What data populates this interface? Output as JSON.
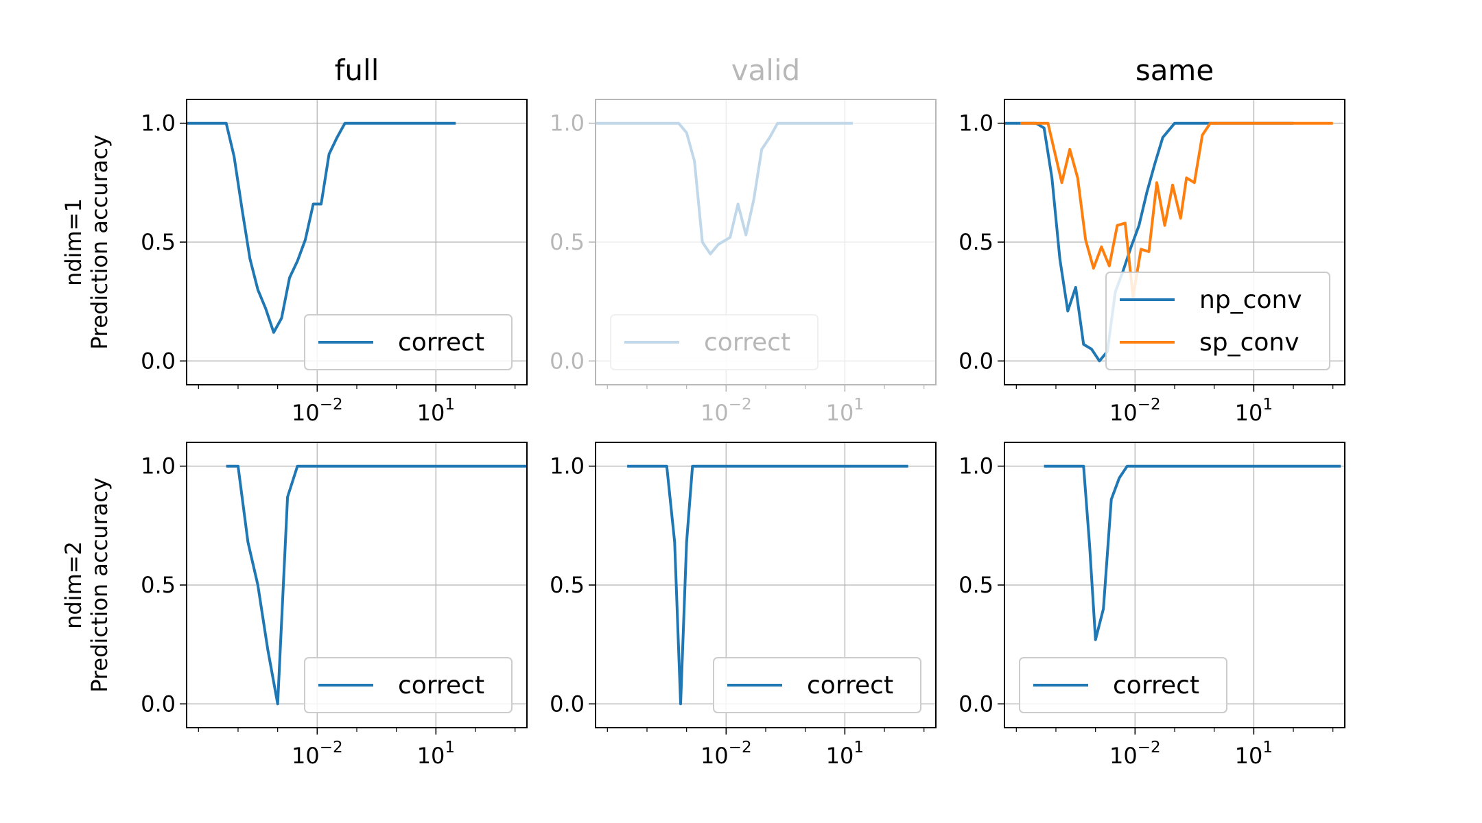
{
  "chart_data": [
    {
      "type": "line",
      "column_title": "full",
      "row_label_1": "ndim=1",
      "row_label_2": "Prediction accuracy",
      "faded": false,
      "xscale": "log",
      "xlim_exp": [
        -5.3,
        3.3
      ],
      "ylim": [
        -0.1,
        1.1
      ],
      "yticks": [
        "0.0",
        "0.5",
        "1.0"
      ],
      "xticks": [
        {
          "label": "10",
          "exp": "−2",
          "value_exp": -2
        },
        {
          "label": "10",
          "exp": "1",
          "value_exp": 1
        }
      ],
      "grid": true,
      "legend": "lower right",
      "series": [
        {
          "name": "correct",
          "color": "#1f77b4",
          "x_exp": [
            -5.3,
            -4.5,
            -4.3,
            -4.1,
            -3.9,
            -3.7,
            -3.5,
            -3.3,
            -3.1,
            -2.9,
            -2.7,
            -2.5,
            -2.3,
            -2.1,
            -1.9,
            -1.7,
            -1.5,
            -1.3,
            -1.1,
            -0.9,
            -0.7,
            -0.5,
            0,
            0.5,
            1.0,
            1.5
          ],
          "y": [
            1.0,
            1.0,
            1.0,
            0.86,
            0.64,
            0.43,
            0.3,
            0.22,
            0.12,
            0.18,
            0.35,
            0.42,
            0.51,
            0.66,
            0.66,
            0.87,
            0.94,
            1.0,
            1.0,
            1.0,
            1.0,
            1.0,
            1.0,
            1.0,
            1.0,
            1.0
          ]
        }
      ]
    },
    {
      "type": "line",
      "column_title": "valid",
      "row_label_1": "",
      "row_label_2": "",
      "faded": true,
      "xscale": "log",
      "xlim_exp": [
        -5.3,
        3.3
      ],
      "ylim": [
        -0.1,
        1.1
      ],
      "yticks": [
        "0.0",
        "0.5",
        "1.0"
      ],
      "xticks": [
        {
          "label": "10",
          "exp": "−2",
          "value_exp": -2
        },
        {
          "label": "10",
          "exp": "1",
          "value_exp": 1
        }
      ],
      "grid": true,
      "legend": "lower left",
      "series": [
        {
          "name": "correct",
          "color": "#1f77b4",
          "x_exp": [
            -5.3,
            -3.2,
            -3.0,
            -2.8,
            -2.6,
            -2.4,
            -2.2,
            -1.9,
            -1.7,
            -1.5,
            -1.3,
            -1.1,
            -0.9,
            -0.7,
            -0.5,
            0,
            1.0,
            1.2
          ],
          "y": [
            1.0,
            1.0,
            0.96,
            0.84,
            0.5,
            0.45,
            0.49,
            0.52,
            0.66,
            0.53,
            0.68,
            0.89,
            0.94,
            1.0,
            1.0,
            1.0,
            1.0,
            1.0
          ]
        }
      ]
    },
    {
      "type": "line",
      "column_title": "same",
      "row_label_1": "",
      "row_label_2": "",
      "faded": false,
      "xscale": "log",
      "xlim_exp": [
        -5.3,
        3.3
      ],
      "ylim": [
        -0.1,
        1.1
      ],
      "yticks": [
        "0.0",
        "0.5",
        "1.0"
      ],
      "xticks": [
        {
          "label": "10",
          "exp": "−2",
          "value_exp": -2
        },
        {
          "label": "10",
          "exp": "1",
          "value_exp": 1
        }
      ],
      "grid": true,
      "legend": "lower right",
      "series": [
        {
          "name": "np_conv",
          "color": "#1f77b4",
          "x_exp": [
            -5.3,
            -4.5,
            -4.3,
            -4.1,
            -3.9,
            -3.7,
            -3.5,
            -3.3,
            -3.1,
            -2.9,
            -2.7,
            -2.5,
            -2.3,
            -2.1,
            -1.9,
            -1.7,
            -1.5,
            -1.3,
            -1.0,
            -0.5,
            0,
            0.5,
            1.0,
            2.0
          ],
          "y": [
            1.0,
            1.0,
            0.98,
            0.77,
            0.43,
            0.21,
            0.31,
            0.07,
            0.05,
            0.0,
            0.04,
            0.29,
            0.38,
            0.48,
            0.57,
            0.71,
            0.83,
            0.94,
            1.0,
            1.0,
            1.0,
            1.0,
            1.0,
            1.0
          ]
        },
        {
          "name": "sp_conv",
          "color": "#ff7f0e",
          "x_exp": [
            -4.9,
            -4.5,
            -4.2,
            -3.85,
            -3.65,
            -3.45,
            -3.25,
            -3.05,
            -2.85,
            -2.65,
            -2.45,
            -2.25,
            -2.05,
            -1.85,
            -1.65,
            -1.45,
            -1.25,
            -1.05,
            -0.85,
            -0.7,
            -0.5,
            -0.3,
            -0.1,
            0.1,
            0.5,
            1.0,
            2.0,
            2.5,
            3.0
          ],
          "y": [
            1.0,
            1.0,
            1.0,
            0.75,
            0.89,
            0.77,
            0.51,
            0.39,
            0.48,
            0.4,
            0.57,
            0.58,
            0.27,
            0.47,
            0.46,
            0.75,
            0.57,
            0.74,
            0.6,
            0.77,
            0.75,
            0.95,
            1.0,
            1.0,
            1.0,
            1.0,
            1.0,
            1.0,
            1.0
          ]
        }
      ]
    },
    {
      "type": "line",
      "column_title": "",
      "row_label_1": "ndim=2",
      "row_label_2": "Prediction accuracy",
      "faded": false,
      "xscale": "log",
      "xlim_exp": [
        -5.3,
        3.3
      ],
      "ylim": [
        -0.1,
        1.1
      ],
      "yticks": [
        "0.0",
        "0.5",
        "1.0"
      ],
      "xticks": [
        {
          "label": "10",
          "exp": "−2",
          "value_exp": -2
        },
        {
          "label": "10",
          "exp": "1",
          "value_exp": 1
        }
      ],
      "grid": true,
      "legend": "lower right",
      "series": [
        {
          "name": "correct",
          "color": "#1f77b4",
          "x_exp": [
            -4.3,
            -4.0,
            -3.75,
            -3.5,
            -3.25,
            -3.0,
            -2.75,
            -2.5,
            -2.0,
            -1.0,
            0,
            1.0,
            2.0,
            3.3
          ],
          "y": [
            1.0,
            1.0,
            0.68,
            0.5,
            0.23,
            0.0,
            0.87,
            1.0,
            1.0,
            1.0,
            1.0,
            1.0,
            1.0,
            1.0
          ]
        }
      ]
    },
    {
      "type": "line",
      "column_title": "",
      "row_label_1": "",
      "row_label_2": "",
      "faded": false,
      "xscale": "log",
      "xlim_exp": [
        -5.3,
        3.3
      ],
      "ylim": [
        -0.1,
        1.1
      ],
      "yticks": [
        "0.0",
        "0.5",
        "1.0"
      ],
      "xticks": [
        {
          "label": "10",
          "exp": "−2",
          "value_exp": -2
        },
        {
          "label": "10",
          "exp": "1",
          "value_exp": 1
        }
      ],
      "grid": true,
      "legend": "lower right",
      "series": [
        {
          "name": "correct",
          "color": "#1f77b4",
          "x_exp": [
            -4.5,
            -3.5,
            -3.3,
            -3.15,
            -3.0,
            -2.85,
            -2.7,
            -2.0,
            -1.0,
            0,
            1.0,
            2.0,
            2.6
          ],
          "y": [
            1.0,
            1.0,
            0.68,
            0.0,
            0.68,
            1.0,
            1.0,
            1.0,
            1.0,
            1.0,
            1.0,
            1.0,
            1.0
          ]
        }
      ]
    },
    {
      "type": "line",
      "column_title": "",
      "row_label_1": "",
      "row_label_2": "",
      "faded": false,
      "xscale": "log",
      "xlim_exp": [
        -5.3,
        3.3
      ],
      "ylim": [
        -0.1,
        1.1
      ],
      "yticks": [
        "0.0",
        "0.5",
        "1.0"
      ],
      "xticks": [
        {
          "label": "10",
          "exp": "−2",
          "value_exp": -2
        },
        {
          "label": "10",
          "exp": "1",
          "value_exp": 1
        }
      ],
      "grid": true,
      "legend": "lower left",
      "series": [
        {
          "name": "correct",
          "color": "#1f77b4",
          "x_exp": [
            -4.3,
            -3.3,
            -3.15,
            -3.0,
            -2.8,
            -2.6,
            -2.4,
            -2.2,
            -2.0,
            -1.0,
            0,
            1.0,
            2.0,
            3.2
          ],
          "y": [
            1.0,
            1.0,
            0.67,
            0.27,
            0.4,
            0.86,
            0.95,
            1.0,
            1.0,
            1.0,
            1.0,
            1.0,
            1.0,
            1.0
          ]
        }
      ]
    }
  ]
}
